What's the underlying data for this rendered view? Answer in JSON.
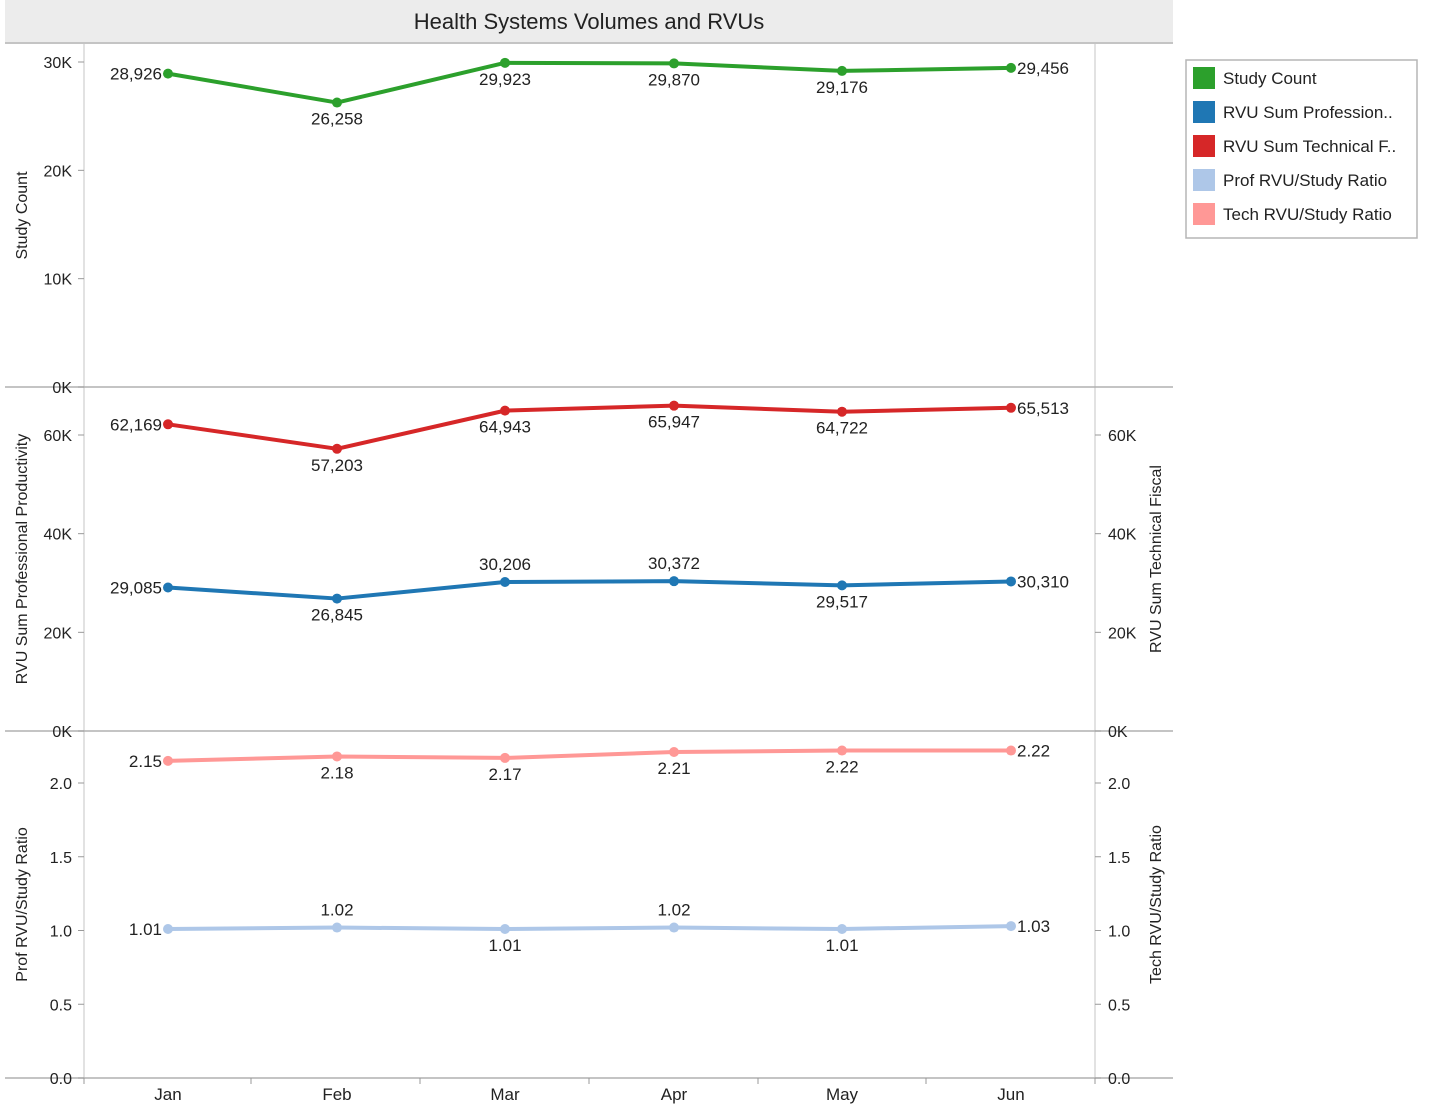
{
  "chart_data": {
    "type": "line",
    "title": "Health Systems Volumes and RVUs",
    "categories": [
      "Jan",
      "Feb",
      "Mar",
      "Apr",
      "May",
      "Jun"
    ],
    "legend": {
      "position": "right",
      "items": [
        {
          "label": "Study Count",
          "color": "#2ca02c"
        },
        {
          "label": "RVU Sum Profession..",
          "color": "#1f77b4"
        },
        {
          "label": "RVU Sum Technical F..",
          "color": "#d62728"
        },
        {
          "label": "Prof RVU/Study Ratio",
          "color": "#aec7e8"
        },
        {
          "label": "Tech RVU/Study Ratio",
          "color": "#ff9896"
        }
      ]
    },
    "panels": [
      {
        "id": "study",
        "left_axis": {
          "label": "Study Count",
          "ticks": [
            "0K",
            "10K",
            "20K",
            "30K"
          ],
          "range": [
            0,
            30000
          ]
        },
        "right_axis": null,
        "series": [
          {
            "name": "Study Count",
            "color": "#2ca02c",
            "values": [
              28926,
              26258,
              29923,
              29870,
              29176,
              29456
            ],
            "labels": [
              "28,926",
              "26,258",
              "29,923",
              "29,870",
              "29,176",
              "29,456"
            ]
          }
        ]
      },
      {
        "id": "rvu",
        "left_axis": {
          "label": "RVU Sum Professional Productivity",
          "ticks": [
            "0K",
            "20K",
            "40K",
            "60K"
          ],
          "range": [
            0,
            60000
          ]
        },
        "right_axis": {
          "label": "RVU Sum Technical Fiscal",
          "ticks": [
            "0K",
            "20K",
            "40K",
            "60K"
          ],
          "range": [
            0,
            60000
          ]
        },
        "series": [
          {
            "name": "RVU Sum Technical F..",
            "color": "#d62728",
            "values": [
              62169,
              57203,
              64943,
              65947,
              64722,
              65513
            ],
            "labels": [
              "62,169",
              "57,203",
              "64,943",
              "65,947",
              "64,722",
              "65,513"
            ]
          },
          {
            "name": "RVU Sum Profession..",
            "color": "#1f77b4",
            "values": [
              29085,
              26845,
              30206,
              30372,
              29517,
              30310
            ],
            "labels": [
              "29,085",
              "26,845",
              "30,206",
              "30,372",
              "29,517",
              "30,310"
            ]
          }
        ]
      },
      {
        "id": "ratio",
        "left_axis": {
          "label": "Prof RVU/Study Ratio",
          "ticks": [
            "0.0",
            "0.5",
            "1.0",
            "1.5",
            "2.0"
          ],
          "range": [
            0,
            2
          ]
        },
        "right_axis": {
          "label": "Tech RVU/Study Ratio",
          "ticks": [
            "0.0",
            "0.5",
            "1.0",
            "1.5",
            "2.0"
          ],
          "range": [
            0,
            2
          ]
        },
        "series": [
          {
            "name": "Tech RVU/Study Ratio",
            "color": "#ff9896",
            "values": [
              2.15,
              2.18,
              2.17,
              2.21,
              2.22,
              2.22
            ],
            "labels": [
              "2.15",
              "2.18",
              "2.17",
              "2.21",
              "2.22",
              "2.22"
            ]
          },
          {
            "name": "Prof RVU/Study Ratio",
            "color": "#aec7e8",
            "values": [
              1.01,
              1.02,
              1.01,
              1.02,
              1.01,
              1.03
            ],
            "labels": [
              "1.01",
              "1.02",
              "1.01",
              "1.02",
              "1.01",
              "1.03"
            ]
          }
        ]
      }
    ]
  }
}
